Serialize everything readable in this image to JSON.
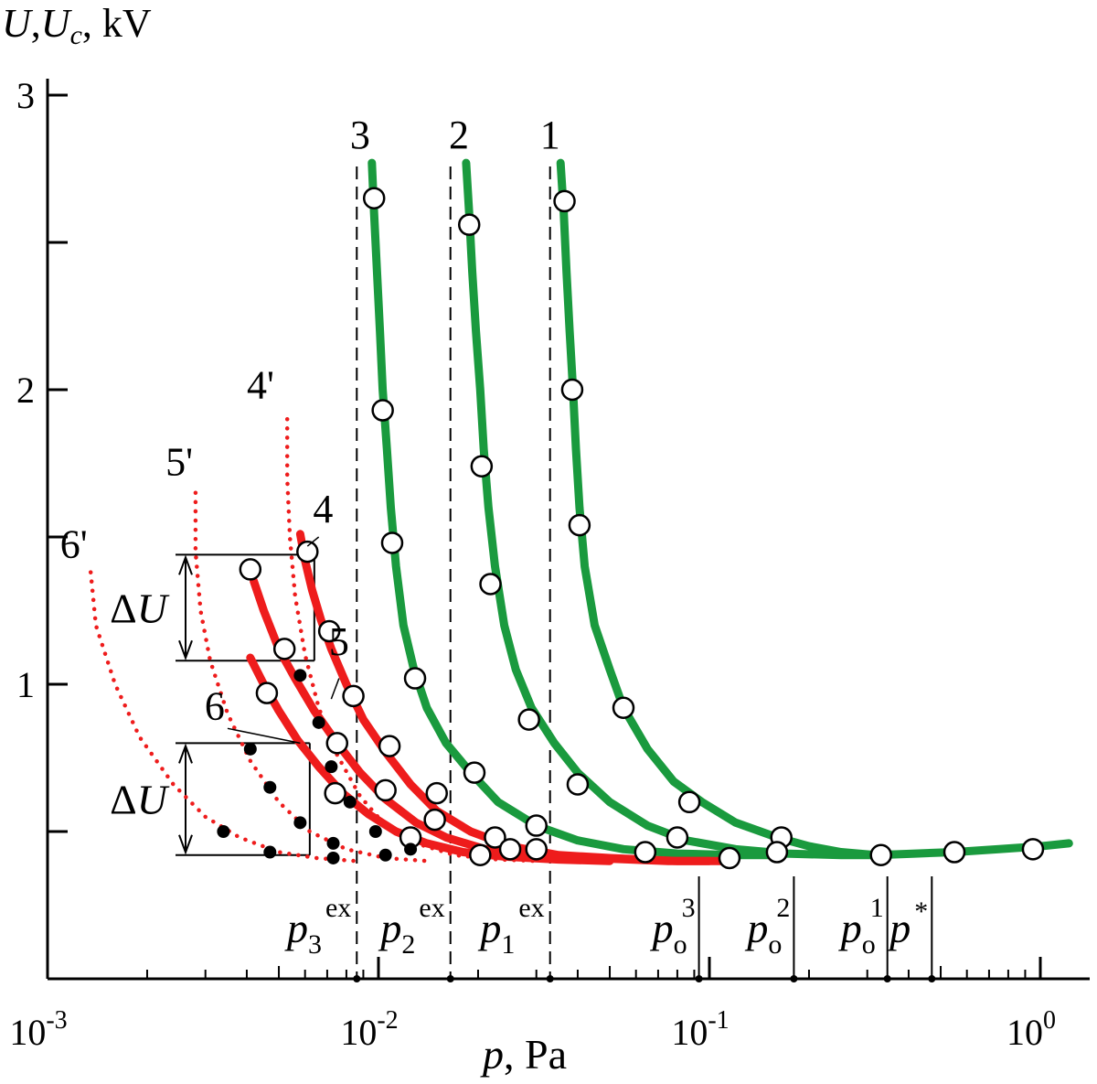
{
  "chart_data": {
    "type": "line",
    "x_scale": "log",
    "xlim": [
      0.001,
      1.25
    ],
    "ylim": [
      0,
      3.05
    ],
    "ylabel_main": "U",
    "ylabel_sep": ",",
    "ylabel_sub_base": "U",
    "ylabel_sub": "c",
    "ylabel_unit": ", kV",
    "xlabel_var": "p",
    "xlabel_unit": ", Pa",
    "xticks": [
      {
        "base": "10",
        "exp": "-3",
        "value": 0.001
      },
      {
        "base": "10",
        "exp": "-2",
        "value": 0.01
      },
      {
        "base": "10",
        "exp": "-1",
        "value": 0.1
      },
      {
        "base": "10",
        "exp": "0",
        "value": 1
      }
    ],
    "yticks": [
      {
        "label": "1",
        "value": 1
      },
      {
        "label": "2",
        "value": 2
      },
      {
        "label": "3",
        "value": 3
      }
    ],
    "yticks_minor": [
      0.5,
      1.5,
      2.5
    ],
    "colors": {
      "green": "#1a9a3e",
      "red": "#ee1c1c",
      "black": "#000000"
    },
    "series": [
      {
        "label": "1",
        "kind": "solid",
        "color": "green",
        "label_pos": [
          0.033,
          2.82
        ],
        "curve": [
          [
            0.0355,
            2.77
          ],
          [
            0.0363,
            2.6
          ],
          [
            0.037,
            2.4
          ],
          [
            0.0378,
            2.2
          ],
          [
            0.0387,
            2.0
          ],
          [
            0.0395,
            1.8
          ],
          [
            0.0405,
            1.6
          ],
          [
            0.042,
            1.4
          ],
          [
            0.045,
            1.2
          ],
          [
            0.05,
            1.05
          ],
          [
            0.055,
            0.92
          ],
          [
            0.065,
            0.78
          ],
          [
            0.078,
            0.67
          ],
          [
            0.095,
            0.6
          ],
          [
            0.12,
            0.53
          ],
          [
            0.16,
            0.48
          ],
          [
            0.2,
            0.45
          ],
          [
            0.25,
            0.43
          ],
          [
            0.32,
            0.42
          ],
          [
            0.42,
            0.425
          ],
          [
            0.55,
            0.43
          ],
          [
            0.75,
            0.44
          ],
          [
            1.0,
            0.45
          ],
          [
            1.22,
            0.46
          ]
        ],
        "points": [
          [
            0.0365,
            2.64
          ],
          [
            0.0385,
            2.0
          ],
          [
            0.0405,
            1.54
          ],
          [
            0.055,
            0.92
          ],
          [
            0.087,
            0.6
          ],
          [
            0.165,
            0.48
          ],
          [
            0.33,
            0.42
          ],
          [
            0.55,
            0.43
          ],
          [
            0.95,
            0.44
          ]
        ]
      },
      {
        "label": "2",
        "kind": "solid",
        "color": "green",
        "label_pos": [
          0.0175,
          2.82
        ],
        "curve": [
          [
            0.0184,
            2.77
          ],
          [
            0.0188,
            2.6
          ],
          [
            0.0192,
            2.4
          ],
          [
            0.0197,
            2.2
          ],
          [
            0.0203,
            2.0
          ],
          [
            0.0208,
            1.8
          ],
          [
            0.0215,
            1.6
          ],
          [
            0.0225,
            1.4
          ],
          [
            0.024,
            1.2
          ],
          [
            0.026,
            1.05
          ],
          [
            0.029,
            0.92
          ],
          [
            0.034,
            0.8
          ],
          [
            0.04,
            0.7
          ],
          [
            0.05,
            0.6
          ],
          [
            0.065,
            0.52
          ],
          [
            0.085,
            0.47
          ],
          [
            0.12,
            0.44
          ],
          [
            0.17,
            0.425
          ],
          [
            0.25,
            0.42
          ],
          [
            0.32,
            0.42
          ]
        ],
        "points": [
          [
            0.0188,
            2.56
          ],
          [
            0.0205,
            1.74
          ],
          [
            0.0218,
            1.34
          ],
          [
            0.0285,
            0.88
          ],
          [
            0.04,
            0.66
          ],
          [
            0.08,
            0.48
          ],
          [
            0.16,
            0.43
          ]
        ]
      },
      {
        "label": "3",
        "kind": "solid",
        "color": "green",
        "label_pos": [
          0.0088,
          2.82
        ],
        "curve": [
          [
            0.00955,
            2.77
          ],
          [
            0.0097,
            2.6
          ],
          [
            0.0099,
            2.4
          ],
          [
            0.0101,
            2.2
          ],
          [
            0.0103,
            2.0
          ],
          [
            0.0106,
            1.8
          ],
          [
            0.0109,
            1.6
          ],
          [
            0.0113,
            1.4
          ],
          [
            0.0119,
            1.2
          ],
          [
            0.0128,
            1.05
          ],
          [
            0.014,
            0.92
          ],
          [
            0.016,
            0.8
          ],
          [
            0.019,
            0.7
          ],
          [
            0.023,
            0.6
          ],
          [
            0.03,
            0.52
          ],
          [
            0.04,
            0.47
          ],
          [
            0.055,
            0.44
          ],
          [
            0.08,
            0.425
          ],
          [
            0.12,
            0.42
          ],
          [
            0.16,
            0.42
          ]
        ],
        "points": [
          [
            0.0097,
            2.65
          ],
          [
            0.0103,
            1.93
          ],
          [
            0.011,
            1.48
          ],
          [
            0.0129,
            1.02
          ],
          [
            0.0195,
            0.7
          ],
          [
            0.03,
            0.52
          ],
          [
            0.064,
            0.43
          ],
          [
            0.115,
            0.41
          ]
        ]
      },
      {
        "label": "4",
        "kind": "solid",
        "color": "red",
        "label_pos": [
          0.0068,
          1.55
        ],
        "curve": [
          [
            0.0058,
            1.51
          ],
          [
            0.006,
            1.42
          ],
          [
            0.0063,
            1.32
          ],
          [
            0.0067,
            1.22
          ],
          [
            0.0072,
            1.12
          ],
          [
            0.008,
            1.0
          ],
          [
            0.009,
            0.88
          ],
          [
            0.0105,
            0.77
          ],
          [
            0.0125,
            0.66
          ],
          [
            0.015,
            0.57
          ],
          [
            0.019,
            0.5
          ],
          [
            0.025,
            0.45
          ],
          [
            0.035,
            0.42
          ],
          [
            0.05,
            0.41
          ],
          [
            0.08,
            0.4
          ],
          [
            0.11,
            0.4
          ]
        ],
        "points": [
          [
            0.0061,
            1.45
          ],
          [
            0.0071,
            1.18
          ],
          [
            0.0084,
            0.96
          ],
          [
            0.0108,
            0.79
          ],
          [
            0.015,
            0.63
          ],
          [
            0.0225,
            0.48
          ],
          [
            0.03,
            0.44
          ]
        ]
      },
      {
        "label": "5",
        "kind": "solid",
        "color": "red",
        "label_pos": [
          0.0076,
          1.1
        ],
        "curve": [
          [
            0.0042,
            1.35
          ],
          [
            0.0045,
            1.25
          ],
          [
            0.005,
            1.12
          ],
          [
            0.0056,
            1.02
          ],
          [
            0.0064,
            0.91
          ],
          [
            0.0075,
            0.8
          ],
          [
            0.0088,
            0.7
          ],
          [
            0.0105,
            0.61
          ],
          [
            0.013,
            0.53
          ],
          [
            0.016,
            0.48
          ],
          [
            0.021,
            0.44
          ],
          [
            0.03,
            0.42
          ],
          [
            0.045,
            0.41
          ],
          [
            0.075,
            0.4
          ],
          [
            0.1,
            0.4
          ]
        ],
        "points": [
          [
            0.0041,
            1.39
          ],
          [
            0.0052,
            1.12
          ],
          [
            0.0075,
            0.8
          ],
          [
            0.0105,
            0.64
          ],
          [
            0.0148,
            0.54
          ],
          [
            0.025,
            0.44
          ]
        ]
      },
      {
        "label": "6",
        "kind": "solid",
        "color": "red",
        "label_pos": [
          0.0032,
          0.88
        ],
        "curve": [
          [
            0.0041,
            1.09
          ],
          [
            0.0045,
            1.0
          ],
          [
            0.005,
            0.91
          ],
          [
            0.0057,
            0.81
          ],
          [
            0.0066,
            0.72
          ],
          [
            0.0078,
            0.63
          ],
          [
            0.0093,
            0.56
          ],
          [
            0.0113,
            0.5
          ],
          [
            0.014,
            0.46
          ],
          [
            0.018,
            0.43
          ],
          [
            0.024,
            0.415
          ],
          [
            0.035,
            0.405
          ],
          [
            0.05,
            0.4
          ]
        ],
        "points": [
          [
            0.0046,
            0.97
          ],
          [
            0.0074,
            0.63
          ],
          [
            0.0125,
            0.48
          ],
          [
            0.0203,
            0.42
          ]
        ]
      },
      {
        "label": "4'",
        "kind": "dotted",
        "color": "red",
        "label_pos": [
          0.0044,
          1.97
        ],
        "curve": [
          [
            0.0053,
            1.9
          ],
          [
            0.0053,
            1.7
          ],
          [
            0.0054,
            1.5
          ],
          [
            0.0056,
            1.3
          ],
          [
            0.006,
            1.1
          ],
          [
            0.0066,
            0.92
          ],
          [
            0.0075,
            0.76
          ],
          [
            0.0088,
            0.62
          ],
          [
            0.0105,
            0.52
          ],
          [
            0.013,
            0.46
          ],
          [
            0.017,
            0.42
          ],
          [
            0.023,
            0.405
          ],
          [
            0.03,
            0.4
          ]
        ],
        "dots": [
          [
            0.0058,
            1.03
          ],
          [
            0.0066,
            0.87
          ],
          [
            0.0072,
            0.72
          ],
          [
            0.0082,
            0.6
          ],
          [
            0.0098,
            0.5
          ],
          [
            0.0125,
            0.44
          ]
        ]
      },
      {
        "label": "5'",
        "kind": "dotted",
        "color": "red",
        "label_pos": [
          0.0025,
          1.71
        ],
        "curve": [
          [
            0.0028,
            1.65
          ],
          [
            0.0028,
            1.45
          ],
          [
            0.0029,
            1.25
          ],
          [
            0.0031,
            1.08
          ],
          [
            0.0035,
            0.9
          ],
          [
            0.0041,
            0.74
          ],
          [
            0.005,
            0.6
          ],
          [
            0.0062,
            0.5
          ],
          [
            0.008,
            0.44
          ],
          [
            0.0105,
            0.41
          ],
          [
            0.014,
            0.4
          ]
        ],
        "dots": [
          [
            0.0041,
            0.78
          ],
          [
            0.0047,
            0.65
          ],
          [
            0.0058,
            0.53
          ],
          [
            0.0073,
            0.46
          ],
          [
            0.0105,
            0.42
          ]
        ]
      },
      {
        "label": "6'",
        "kind": "dotted",
        "color": "red",
        "label_pos": [
          0.0012,
          1.43
        ],
        "curve": [
          [
            0.00135,
            1.38
          ],
          [
            0.0014,
            1.2
          ],
          [
            0.0016,
            1.0
          ],
          [
            0.0019,
            0.82
          ],
          [
            0.0024,
            0.66
          ],
          [
            0.003,
            0.55
          ],
          [
            0.0038,
            0.48
          ],
          [
            0.005,
            0.43
          ],
          [
            0.0065,
            0.41
          ],
          [
            0.0085,
            0.4
          ]
        ],
        "dots": [
          [
            0.0034,
            0.5
          ],
          [
            0.0047,
            0.43
          ],
          [
            0.0073,
            0.41
          ]
        ]
      }
    ],
    "vlines_dashed": [
      {
        "x": 0.0086,
        "label_base": "p",
        "label_sub": "3",
        "label_sup": "ex"
      },
      {
        "x": 0.0165,
        "label_base": "p",
        "label_sub": "2",
        "label_sup": "ex"
      },
      {
        "x": 0.033,
        "label_base": "p",
        "label_sub": "1",
        "label_sup": "ex"
      }
    ],
    "vlines_solid": [
      {
        "x": 0.093,
        "label_base": "p",
        "label_sub": "o",
        "label_sup": "3"
      },
      {
        "x": 0.18,
        "label_base": "p",
        "label_sub": "o",
        "label_sup": "2"
      },
      {
        "x": 0.345,
        "label_base": "p",
        "label_sub": "o",
        "label_sup": "1"
      },
      {
        "x": 0.47,
        "label_base": "p",
        "label_sub": "",
        "label_sup": "*"
      }
    ],
    "delta_boxes": [
      {
        "label": "ΔU",
        "x0": 0.0036,
        "x1": 0.0064,
        "y0": 1.08,
        "y1": 1.44
      },
      {
        "label": "ΔU",
        "x0": 0.0036,
        "x1": 0.0062,
        "y0": 0.42,
        "y1": 0.8
      }
    ]
  }
}
